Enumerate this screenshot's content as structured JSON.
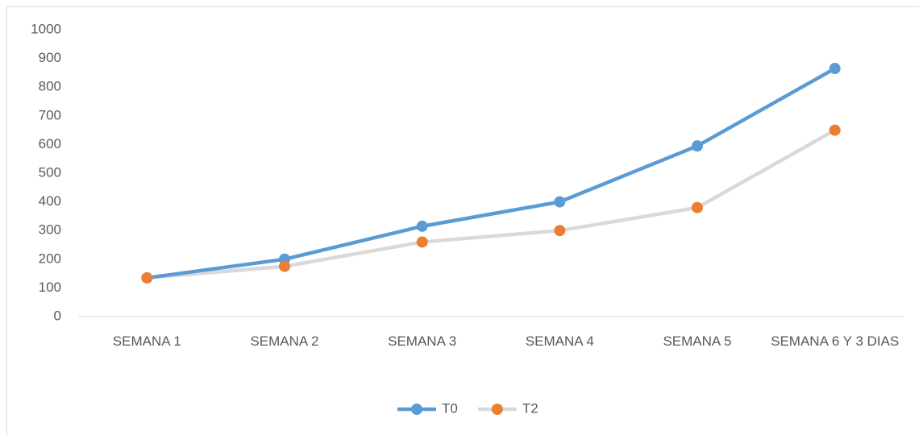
{
  "chart_data": {
    "type": "line",
    "categories": [
      "SEMANA 1",
      "SEMANA 2",
      "SEMANA 3",
      "SEMANA 4",
      "SEMANA 5",
      "SEMANA 6 Y 3 DIAS"
    ],
    "series": [
      {
        "name": "T0",
        "color": "#5b9bd5",
        "marker_color": "#5b9bd5",
        "values": [
          135,
          200,
          315,
          400,
          595,
          865
        ]
      },
      {
        "name": "T2",
        "color": "#d9d9d9",
        "marker_color": "#ed7d31",
        "values": [
          135,
          175,
          260,
          300,
          380,
          650
        ]
      }
    ],
    "ylim": [
      0,
      1000
    ],
    "yticks": [
      0,
      100,
      200,
      300,
      400,
      500,
      600,
      700,
      800,
      900,
      1000
    ],
    "grid": false,
    "legend": "bottom"
  }
}
